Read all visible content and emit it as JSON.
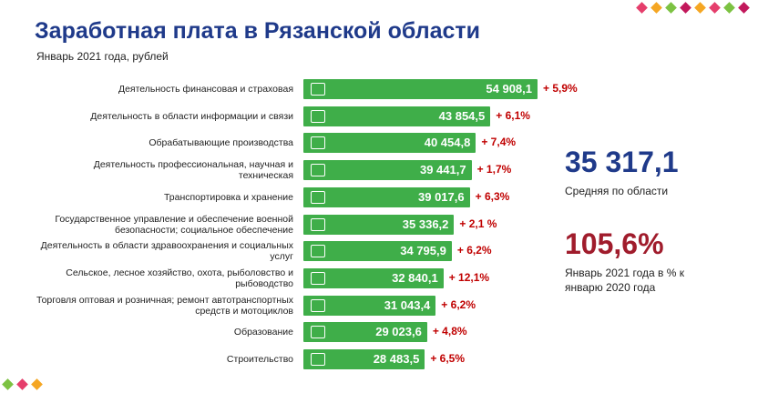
{
  "chart_data": {
    "type": "bar",
    "orientation": "horizontal",
    "title": "Заработная плата в Рязанской области",
    "subtitle": "Январь 2021 года, рублей",
    "categories": [
      "Деятельность финансовая и страховая",
      "Деятельность в области информации и связи",
      "Обрабатывающие производства",
      "Деятельность профессиональная, научная и техническая",
      "Транспортировка и хранение",
      "Государственное управление и обеспечение военной безопасности; социальное обеспечение",
      "Деятельность в области здравоохранения и социальных услуг",
      "Сельское, лесное хозяйство, охота, рыболовство и рыбоводство",
      "Торговля оптовая и розничная; ремонт автотранспортных средств и мотоциклов",
      "Образование",
      "Строительство"
    ],
    "values": [
      54908.1,
      43854.5,
      40454.8,
      39441.7,
      39017.6,
      35336.2,
      34795.9,
      32840.1,
      31043.4,
      29023.6,
      28483.5
    ],
    "value_labels": [
      "54 908,1",
      "43 854,5",
      "40 454,8",
      "39 441,7",
      "39 017,6",
      "35 336,2",
      "34 795,9",
      "32 840,1",
      "31 043,4",
      "29 023,6",
      "28 483,5"
    ],
    "changes": [
      5.9,
      6.1,
      7.4,
      1.7,
      6.3,
      2.1,
      6.2,
      12.1,
      6.2,
      4.8,
      6.5
    ],
    "change_labels": [
      "+ 5,9%",
      "+ 6,1%",
      "+ 7,4%",
      "+ 1,7%",
      "+ 6,3%",
      "+ 2,1 %",
      "+ 6,2%",
      "+ 12,1%",
      "+ 6,2%",
      "+ 4,8%",
      "+ 6,5%"
    ],
    "color": "#3fae49",
    "change_color": "#c00000",
    "xlim": [
      0,
      55000
    ],
    "summary": [
      {
        "value": 35317.1,
        "label": "35 317,1",
        "caption": "Средняя по области",
        "color": "#1f3a8a"
      },
      {
        "value": 105.6,
        "label": "105,6%",
        "caption": "Январь 2021 года в % к январю 2020 года",
        "color": "#a01c2c"
      }
    ]
  }
}
